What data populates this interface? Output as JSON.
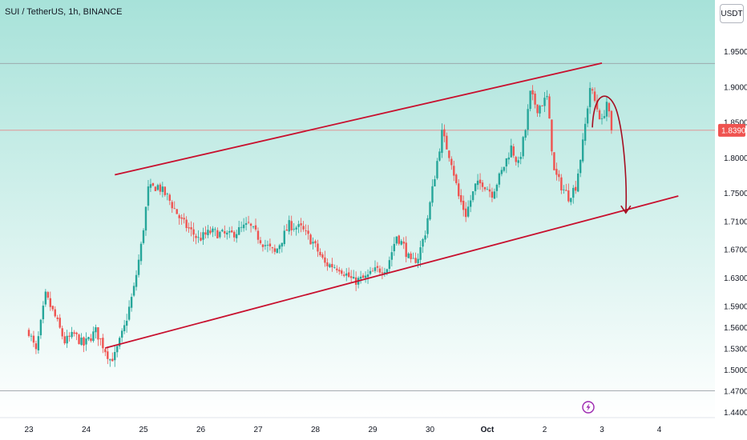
{
  "header": {
    "title": "SUI / TetherUS, 1h, BINANCE",
    "unit_button": "USDT"
  },
  "chart_data": {
    "type": "candlestick",
    "symbol": "SUI / TetherUS",
    "interval": "1h",
    "exchange": "BINANCE",
    "quote_unit": "USDT",
    "ylim": [
      1.428,
      1.978
    ],
    "y_ticks": [
      "1.9500",
      "1.9000",
      "1.8500",
      "1.8000",
      "1.7500",
      "1.7100",
      "1.6700",
      "1.6300",
      "1.5900",
      "1.5600",
      "1.5300",
      "1.5000",
      "1.4700",
      "1.4400"
    ],
    "x_ticks": [
      "23",
      "24",
      "25",
      "26",
      "27",
      "28",
      "29",
      "30",
      "Oct",
      "2",
      "3",
      "4"
    ],
    "current_price": "1.8390",
    "horizontal_lines": [
      1.9335,
      1.839,
      1.4705
    ],
    "channel_upper": {
      "start": [
        "24 12:00",
        1.776
      ],
      "end": [
        "3 00:00",
        1.934
      ]
    },
    "channel_lower": {
      "start": [
        "24 08:00",
        1.531
      ],
      "end": [
        "4 08:00",
        1.746
      ]
    },
    "projection_arrow": {
      "from": [
        "2 20:00",
        1.843
      ],
      "peak": [
        "2 23:00",
        1.88
      ],
      "to": [
        "3 10:00",
        1.722
      ]
    },
    "path_waypoints": [
      [
        "23 00:00",
        1.555
      ],
      [
        "23 03:00",
        1.525
      ],
      [
        "23 07:00",
        1.605
      ],
      [
        "23 11:00",
        1.575
      ],
      [
        "23 15:00",
        1.54
      ],
      [
        "23 19:00",
        1.55
      ],
      [
        "23 23:00",
        1.535
      ],
      [
        "24 04:00",
        1.555
      ],
      [
        "24 10:00",
        1.515
      ],
      [
        "24 12:00",
        1.52
      ],
      [
        "24 16:00",
        1.56
      ],
      [
        "24 20:00",
        1.615
      ],
      [
        "24 23:00",
        1.675
      ],
      [
        "25 02:00",
        1.755
      ],
      [
        "25 06:00",
        1.76
      ],
      [
        "25 10:00",
        1.745
      ],
      [
        "25 16:00",
        1.71
      ],
      [
        "25 23:00",
        1.685
      ],
      [
        "26 04:00",
        1.695
      ],
      [
        "26 12:00",
        1.69
      ],
      [
        "26 20:00",
        1.705
      ],
      [
        "27 02:00",
        1.68
      ],
      [
        "27 07:00",
        1.665
      ],
      [
        "27 13:00",
        1.705
      ],
      [
        "27 18:00",
        1.7
      ],
      [
        "27 23:00",
        1.68
      ],
      [
        "28 04:00",
        1.65
      ],
      [
        "28 10:00",
        1.645
      ],
      [
        "28 16:00",
        1.625
      ],
      [
        "28 21:00",
        1.63
      ],
      [
        "29 01:00",
        1.64
      ],
      [
        "29 06:00",
        1.645
      ],
      [
        "29 10:00",
        1.69
      ],
      [
        "29 13:00",
        1.675
      ],
      [
        "29 16:00",
        1.65
      ],
      [
        "29 19:00",
        1.66
      ],
      [
        "29 22:00",
        1.695
      ],
      [
        "30 02:00",
        1.775
      ],
      [
        "30 05:00",
        1.835
      ],
      [
        "30 09:00",
        1.795
      ],
      [
        "30 12:00",
        1.745
      ],
      [
        "30 15:00",
        1.72
      ],
      [
        "30 19:00",
        1.76
      ],
      [
        "30 22:00",
        1.765
      ],
      [
        "1 02:00",
        1.75
      ],
      [
        "1 06:00",
        1.78
      ],
      [
        "1 10:00",
        1.815
      ],
      [
        "1 13:00",
        1.79
      ],
      [
        "1 16:00",
        1.84
      ],
      [
        "1 18:00",
        1.89
      ],
      [
        "1 21:00",
        1.87
      ],
      [
        "2 01:00",
        1.885
      ],
      [
        "2 04:00",
        1.78
      ],
      [
        "2 07:00",
        1.76
      ],
      [
        "2 10:00",
        1.745
      ],
      [
        "2 13:00",
        1.76
      ],
      [
        "2 16:00",
        1.82
      ],
      [
        "2 19:00",
        1.9
      ],
      [
        "2 22:00",
        1.87
      ],
      [
        "3 00:00",
        1.85
      ],
      [
        "3 02:00",
        1.88
      ],
      [
        "3 04:00",
        1.839
      ]
    ],
    "colors": {
      "up": "#26a69a",
      "down": "#ef5350",
      "channel": "#c8102e",
      "arrow": "#a50f22",
      "price_label_bg": "#ef5350",
      "background_top": "#a7e2d9",
      "background_bottom": "#ffffff"
    }
  }
}
